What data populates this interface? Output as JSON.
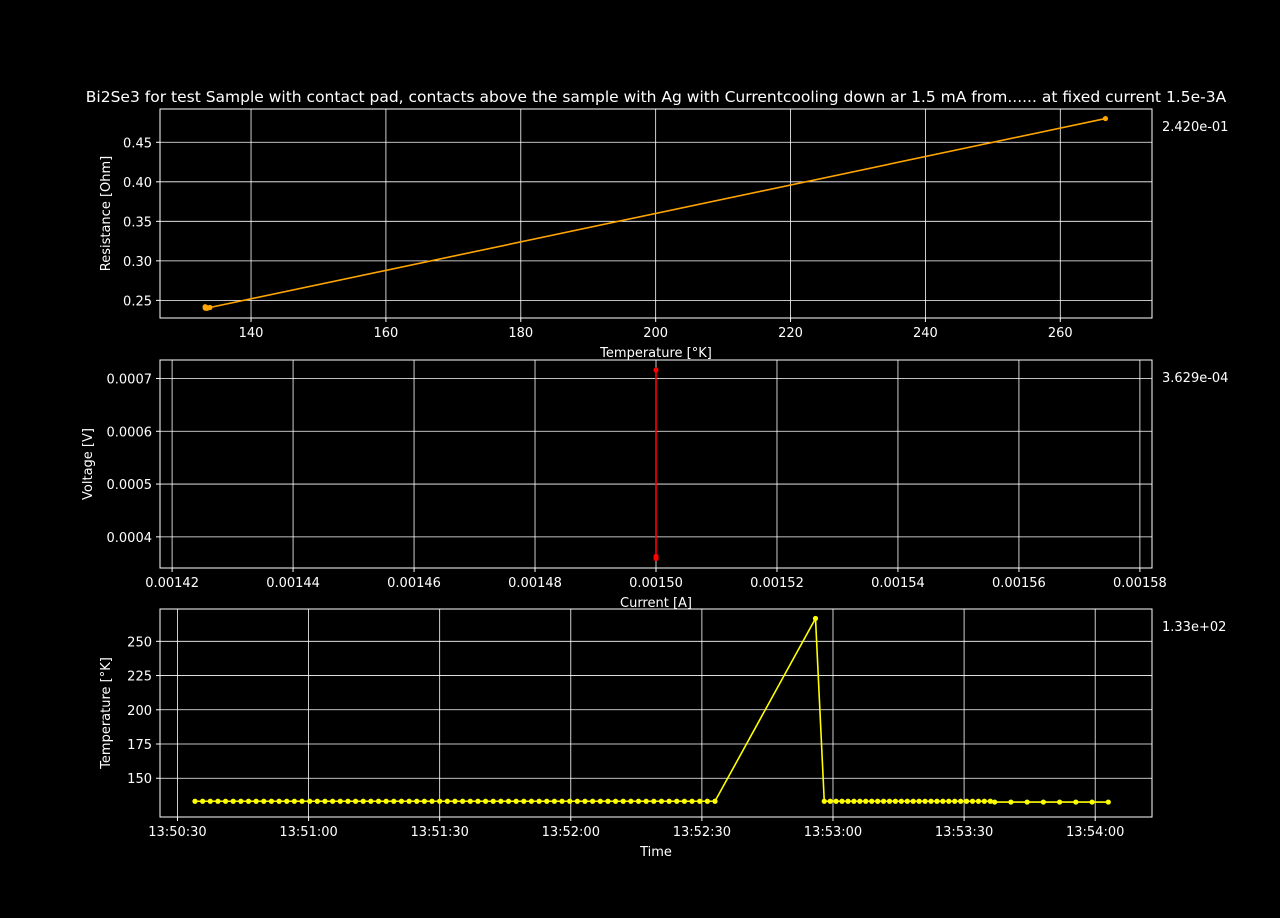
{
  "title": "Bi2Se3 for test Sample with contact pad, contacts above the sample with Ag with Currentcooling down ar 1.5 mA from...... at fixed current 1.5e-3A",
  "colors": {
    "background": "#000000",
    "frame": "#ffffff",
    "grid": "#ffffff"
  },
  "chart_data": [
    {
      "type": "line",
      "xlabel": "Temperature [°K]",
      "ylabel": "Resistance [Ohm]",
      "xlim": [
        126.5,
        273.6
      ],
      "ylim": [
        0.2277,
        0.4921
      ],
      "xticks": [
        140,
        160,
        180,
        200,
        220,
        240,
        260
      ],
      "yticks": [
        0.25,
        0.3,
        0.35,
        0.4,
        0.45
      ],
      "tick_decimals": {
        "x": 0,
        "y": 2
      },
      "side_label": "2.420e-01",
      "color": "#ffa500",
      "grid": true,
      "series": [
        {
          "x": [
            266.7,
            133.9,
            133.6,
            133.5,
            133.4,
            133.3,
            133.2,
            133.2
          ],
          "y": [
            0.48,
            0.241,
            0.2405,
            0.2402,
            0.24,
            0.2401,
            0.2403,
            0.242
          ]
        }
      ]
    },
    {
      "type": "line",
      "xlabel": "Current [A]",
      "ylabel": "Voltage [V]",
      "xlim": [
        0.001418,
        0.001582
      ],
      "ylim": [
        0.000341,
        0.000735
      ],
      "xticks": [
        0.00142,
        0.00144,
        0.00146,
        0.00148,
        0.0015,
        0.00152,
        0.00154,
        0.00156,
        0.00158
      ],
      "yticks": [
        0.0004,
        0.0005,
        0.0006,
        0.0007
      ],
      "tick_decimals": {
        "x": 5,
        "y": 4
      },
      "side_label": "3.629e-04",
      "color": "#ff0000",
      "grid": true,
      "series": [
        {
          "x": [
            0.0015,
            0.0015,
            0.0015
          ],
          "y": [
            0.000716,
            0.000363,
            0.000359
          ]
        }
      ]
    },
    {
      "type": "line",
      "xlabel": "Time",
      "ylabel": "Temperature [°K]",
      "xlim": [
        "13:50:26",
        "13:54:13"
      ],
      "ylim": [
        121.7,
        273.6
      ],
      "xticks": [
        "13:50:30",
        "13:51:00",
        "13:51:30",
        "13:52:00",
        "13:52:30",
        "13:53:00",
        "13:53:30",
        "13:54:00"
      ],
      "yticks": [
        150,
        175,
        200,
        225,
        250
      ],
      "tick_decimals": {
        "x": 0,
        "y": 0
      },
      "side_label": "1.33e+02",
      "color": "#ffff00",
      "grid": true,
      "segments": [
        {
          "start": "13:50:34",
          "end": "13:52:33",
          "count": 69,
          "value": 133.2
        },
        {
          "start": "13:52:58",
          "end": "13:53:36",
          "count": 29,
          "value": 133.2
        },
        {
          "start": "13:53:37",
          "end": "13:54:03",
          "count": 8,
          "value": 132.6
        }
      ],
      "peak": {
        "time": "13:52:56",
        "value": 266.7
      }
    }
  ]
}
